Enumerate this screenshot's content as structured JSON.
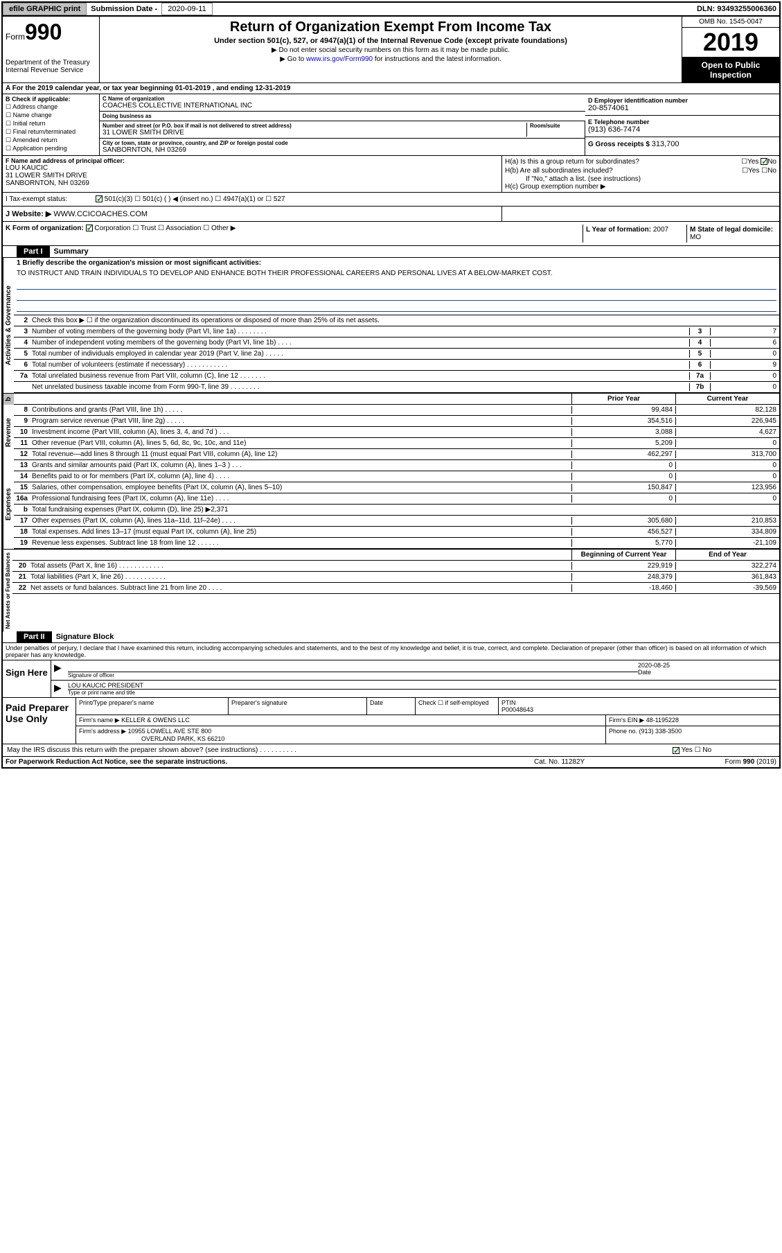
{
  "topbar": {
    "efile": "efile GRAPHIC print",
    "submission_label": "Submission Date - ",
    "submission_date": "2020-09-11",
    "dln_label": "DLN: ",
    "dln": "93493255006360"
  },
  "header": {
    "form_prefix": "Form",
    "form_number": "990",
    "dept": "Department of the Treasury\nInternal Revenue Service",
    "title": "Return of Organization Exempt From Income Tax",
    "subtitle": "Under section 501(c), 527, or 4947(a)(1) of the Internal Revenue Code (except private foundations)",
    "note1": "▶ Do not enter social security numbers on this form as it may be made public.",
    "note2_prefix": "▶ Go to ",
    "note2_link": "www.irs.gov/Form990",
    "note2_suffix": " for instructions and the latest information.",
    "omb": "OMB No. 1545-0047",
    "year": "2019",
    "open_public": "Open to Public Inspection"
  },
  "row_a": "A For the 2019 calendar year, or tax year beginning 01-01-2019    , and ending 12-31-2019",
  "section_b": {
    "label": "B Check if applicable:",
    "items": [
      "Address change",
      "Name change",
      "Initial return",
      "Final return/terminated",
      "Amended return",
      "Application pending"
    ]
  },
  "section_c": {
    "name_lbl": "C Name of organization",
    "name": "COACHES COLLECTIVE INTERNATIONAL INC",
    "dba_lbl": "Doing business as",
    "dba": "",
    "addr_lbl": "Number and street (or P.O. box if mail is not delivered to street address)",
    "room_lbl": "Room/suite",
    "addr": "31 LOWER SMITH DRIVE",
    "city_lbl": "City or town, state or province, country, and ZIP or foreign postal code",
    "city": "SANBORNTON, NH  03269"
  },
  "section_d": {
    "lbl": "D Employer identification number",
    "val": "20-8574061"
  },
  "section_e": {
    "lbl": "E Telephone number",
    "val": "(913) 636-7474"
  },
  "section_g": {
    "lbl": "G Gross receipts $ ",
    "val": "313,700"
  },
  "section_f": {
    "lbl": "F  Name and address of principal officer:",
    "name": "LOU KAUCIC",
    "addr1": "31 LOWER SMITH DRIVE",
    "addr2": "SANBORNTON, NH  03269"
  },
  "section_h": {
    "a": "H(a)  Is this a group return for subordinates?",
    "a_ans": "No",
    "b": "H(b)  Are all subordinates included?",
    "b_note": "If \"No,\" attach a list. (see instructions)",
    "c": "H(c)  Group exemption number ▶"
  },
  "tax_status": {
    "lbl": "I   Tax-exempt status:",
    "opts": [
      "501(c)(3)",
      "501(c) (  ) ◀ (insert no.)",
      "4947(a)(1) or",
      "527"
    ]
  },
  "section_j": {
    "lbl": "J   Website: ▶ ",
    "val": "WWW.CCICOACHES.COM"
  },
  "section_k": {
    "lbl": "K Form of organization:",
    "opts": [
      "Corporation",
      "Trust",
      "Association",
      "Other ▶"
    ]
  },
  "section_l": {
    "lbl": "L Year of formation: ",
    "val": "2007"
  },
  "section_m": {
    "lbl": "M State of legal domicile:",
    "val": "MO"
  },
  "part1": {
    "header": "Part I",
    "title": "Summary",
    "line1_lbl": "1   Briefly describe the organization's mission or most significant activities:",
    "mission": "TO INSTRUCT AND TRAIN INDIVIDUALS TO DEVELOP AND ENHANCE BOTH THEIR PROFESSIONAL CAREERS AND PERSONAL LIVES AT A BELOW-MARKET COST.",
    "line2": "Check this box ▶ ☐  if the organization discontinued its operations or disposed of more than 25% of its net assets.",
    "governance_label": "Activities & Governance",
    "revenue_label": "Revenue",
    "expenses_label": "Expenses",
    "netassets_label": "Net Assets or Fund Balances",
    "lines_gov": [
      {
        "n": "3",
        "t": "Number of voting members of the governing body (Part VI, line 1a)  .    .    .    .    .    .    .    .",
        "box": "3",
        "v": "7"
      },
      {
        "n": "4",
        "t": "Number of independent voting members of the governing body (Part VI, line 1b)  .    .    .    .",
        "box": "4",
        "v": "6"
      },
      {
        "n": "5",
        "t": "Total number of individuals employed in calendar year 2019 (Part V, line 2a)  .    .    .    .    .",
        "box": "5",
        "v": "0"
      },
      {
        "n": "6",
        "t": "Total number of volunteers (estimate if necessary)    .    .    .    .    .    .    .    .    .    .    .",
        "box": "6",
        "v": "9"
      },
      {
        "n": "7a",
        "t": "Total unrelated business revenue from Part VIII, column (C), line 12   .    .    .    .    .    .    .",
        "box": "7a",
        "v": "0"
      },
      {
        "n": "",
        "t": "Net unrelated business taxable income from Form 990-T, line 39    .    .    .    .    .    .    .    .",
        "box": "7b",
        "v": "0"
      }
    ],
    "prior_year": "Prior Year",
    "current_year": "Current Year",
    "lines_rev": [
      {
        "n": "8",
        "t": "Contributions and grants (Part VIII, line 1h)    .    .    .    .    .",
        "py": "99,484",
        "cy": "82,128"
      },
      {
        "n": "9",
        "t": "Program service revenue (Part VIII, line 2g)    .    .    .    .    .",
        "py": "354,516",
        "cy": "226,945"
      },
      {
        "n": "10",
        "t": "Investment income (Part VIII, column (A), lines 3, 4, and 7d )    .    .    .",
        "py": "3,088",
        "cy": "4,627"
      },
      {
        "n": "11",
        "t": "Other revenue (Part VIII, column (A), lines 5, 6d, 8c, 9c, 10c, and 11e)",
        "py": "5,209",
        "cy": "0"
      },
      {
        "n": "12",
        "t": "Total revenue—add lines 8 through 11 (must equal Part VIII, column (A), line 12)",
        "py": "462,297",
        "cy": "313,700"
      }
    ],
    "lines_exp": [
      {
        "n": "13",
        "t": "Grants and similar amounts paid (Part IX, column (A), lines 1–3 )  .    .    .",
        "py": "0",
        "cy": "0"
      },
      {
        "n": "14",
        "t": "Benefits paid to or for members (Part IX, column (A), line 4)  .    .    .    .",
        "py": "0",
        "cy": "0"
      },
      {
        "n": "15",
        "t": "Salaries, other compensation, employee benefits (Part IX, column (A), lines 5–10)",
        "py": "150,847",
        "cy": "123,956"
      },
      {
        "n": "16a",
        "t": "Professional fundraising fees (Part IX, column (A), line 11e)  .    .    .    .",
        "py": "0",
        "cy": "0"
      },
      {
        "n": "b",
        "t": "Total fundraising expenses (Part IX, column (D), line 25) ▶2,371",
        "py": "",
        "cy": "",
        "shaded": true
      },
      {
        "n": "17",
        "t": "Other expenses (Part IX, column (A), lines 11a–11d, 11f–24e)  .    .    .    .",
        "py": "305,680",
        "cy": "210,853"
      },
      {
        "n": "18",
        "t": "Total expenses. Add lines 13–17 (must equal Part IX, column (A), line 25)",
        "py": "456,527",
        "cy": "334,809"
      },
      {
        "n": "19",
        "t": "Revenue less expenses. Subtract line 18 from line 12  .    .    .    .    .    .",
        "py": "5,770",
        "cy": "-21,109"
      }
    ],
    "boy": "Beginning of Current Year",
    "eoy": "End of Year",
    "lines_net": [
      {
        "n": "20",
        "t": "Total assets (Part X, line 16)  .    .    .    .    .    .    .    .    .    .    .    .",
        "py": "229,919",
        "cy": "322,274"
      },
      {
        "n": "21",
        "t": "Total liabilities (Part X, line 26)  .    .    .    .    .    .    .    .    .    .    .",
        "py": "248,379",
        "cy": "361,843"
      },
      {
        "n": "22",
        "t": "Net assets or fund balances. Subtract line 21 from line 20  .    .    .    .",
        "py": "-18,460",
        "cy": "-39,569"
      }
    ]
  },
  "part2": {
    "header": "Part II",
    "title": "Signature Block",
    "declaration": "Under penalties of perjury, I declare that I have examined this return, including accompanying schedules and statements, and to the best of my knowledge and belief, it is true, correct, and complete. Declaration of preparer (other than officer) is based on all information of which preparer has any knowledge.",
    "sign_here": "Sign Here",
    "sig_officer_lbl": "Signature of officer",
    "sig_date": "2020-08-25",
    "sig_date_lbl": "Date",
    "officer_name": "LOU KAUCIC  PRESIDENT",
    "officer_name_lbl": "Type or print name and title",
    "paid_prep": "Paid Preparer Use Only",
    "prep_name_lbl": "Print/Type preparer's name",
    "prep_sig_lbl": "Preparer's signature",
    "prep_date_lbl": "Date",
    "prep_check": "Check ☐ if self-employed",
    "ptin_lbl": "PTIN",
    "ptin": "P00048643",
    "firm_name_lbl": "Firm's name     ▶ ",
    "firm_name": "KELLER & OWENS LLC",
    "firm_ein_lbl": "Firm's EIN ▶ ",
    "firm_ein": "48-1195228",
    "firm_addr_lbl": "Firm's address ▶ ",
    "firm_addr1": "10955 LOWELL AVE STE 800",
    "firm_addr2": "OVERLAND PARK, KS  66210",
    "phone_lbl": "Phone no. ",
    "phone": "(913) 338-3500",
    "discuss": "May the IRS discuss this return with the preparer shown above? (see instructions)   .    .    .    .    .    .    .    .    .    .",
    "discuss_ans": "Yes"
  },
  "footer": {
    "left": "For Paperwork Reduction Act Notice, see the separate instructions.",
    "mid": "Cat. No. 11282Y",
    "right": "Form 990 (2019)"
  }
}
